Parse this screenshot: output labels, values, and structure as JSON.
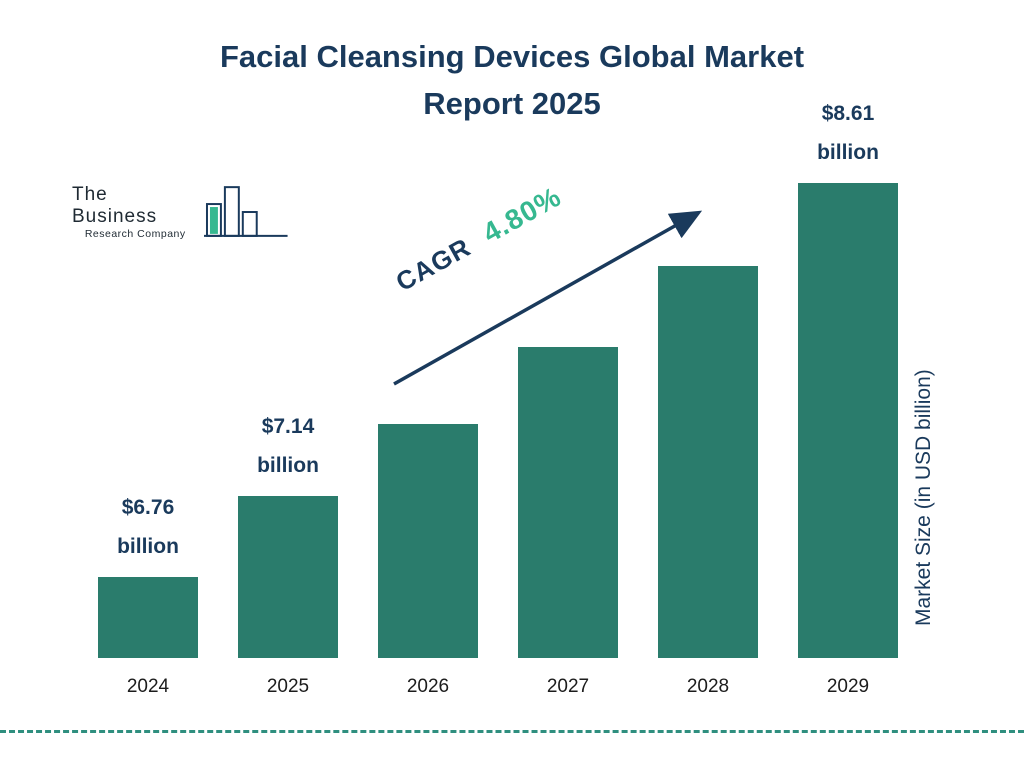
{
  "title": {
    "line1": "Facial Cleansing Devices Global Market",
    "line2": "Report 2025"
  },
  "logo": {
    "line1": "The Business",
    "line2": "Research Company"
  },
  "cagr": {
    "label": "CAGR",
    "value": "4.80%"
  },
  "ylabel": "Market Size (in USD billion)",
  "chart_data": {
    "type": "bar",
    "title": "Facial Cleansing Devices Global Market Report 2025",
    "categories": [
      "2024",
      "2025",
      "2026",
      "2027",
      "2028",
      "2029"
    ],
    "values": [
      6.76,
      7.14,
      7.48,
      7.84,
      8.22,
      8.61
    ],
    "bar_labels": {
      "0": {
        "value": "$6.76",
        "unit": "billion"
      },
      "1": {
        "value": "$7.14",
        "unit": "billion"
      },
      "5": {
        "value": "$8.61",
        "unit": "billion"
      }
    },
    "xlabel": "",
    "ylabel": "Market Size (in USD billion)",
    "ylim": [
      6.38,
      8.75
    ],
    "grid": false,
    "legend": false,
    "annotation": "CAGR 4.80%",
    "bar_color": "#2a7c6c"
  },
  "colors": {
    "bar": "#2a7c6c",
    "title": "#1a3a5c",
    "cagr_value": "#36b890",
    "arrow": "#1a3a5c",
    "dashed_line": "#2f8f7f"
  }
}
